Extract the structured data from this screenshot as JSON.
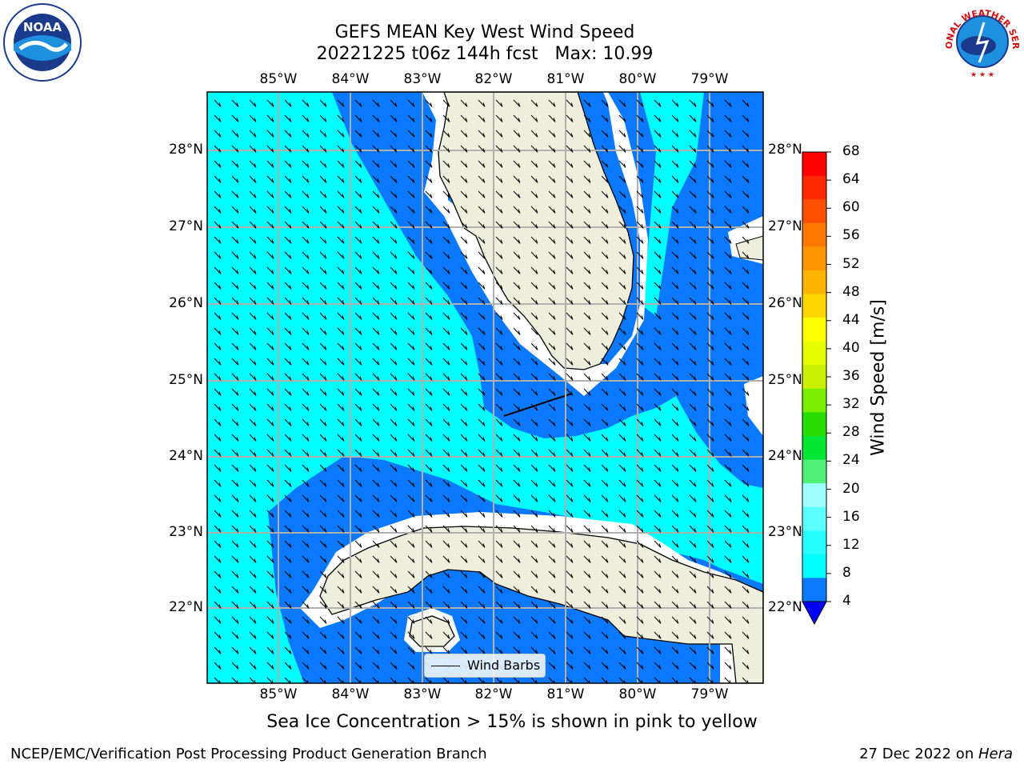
{
  "title": {
    "line1": "GEFS MEAN Key West Wind Speed",
    "line2": "20221225 t06z 144h fcst   Max: 10.99"
  },
  "map": {
    "lon_labels": [
      "85°W",
      "84°W",
      "83°W",
      "82°W",
      "81°W",
      "80°W",
      "79°W"
    ],
    "lat_labels": [
      "28°N",
      "27°N",
      "26°N",
      "25°N",
      "24°N",
      "23°N",
      "22°N"
    ],
    "legend_label": "Wind Barbs",
    "colors": {
      "band_4_8": "#0a78ff",
      "band_8_12": "#00ffff",
      "land": "#eeeedc",
      "no_data": "#ffffff"
    }
  },
  "colorbar": {
    "label": "Wind Speed [m/s]",
    "ticks": [
      "68",
      "64",
      "60",
      "56",
      "52",
      "48",
      "44",
      "40",
      "36",
      "32",
      "28",
      "24",
      "20",
      "16",
      "12",
      "8",
      "4"
    ],
    "colors": [
      "#ff0000",
      "#ff2800",
      "#ff5000",
      "#ff7800",
      "#ff9600",
      "#ffb400",
      "#ffd700",
      "#ffff00",
      "#e6ff00",
      "#c8f000",
      "#78f000",
      "#28dc00",
      "#00e632",
      "#50f078",
      "#a0ffff",
      "#5affff",
      "#28ffff",
      "#00ffff",
      "#0a78ff"
    ],
    "extend_color": "#0000ff"
  },
  "caption": "Sea Ice Concentration > 15% is shown in pink to yellow",
  "footer": {
    "left": "NCEP/EMC/Verification Post Processing Product Generation Branch",
    "right_prefix": "27 Dec 2022 on ",
    "right_italic": "Hera"
  },
  "logos": {
    "noaa": {
      "icon": "noaa-logo",
      "text": "NOAA"
    },
    "nws": {
      "icon": "nws-logo",
      "text": "NATIONAL WEATHER SERVICE"
    }
  }
}
